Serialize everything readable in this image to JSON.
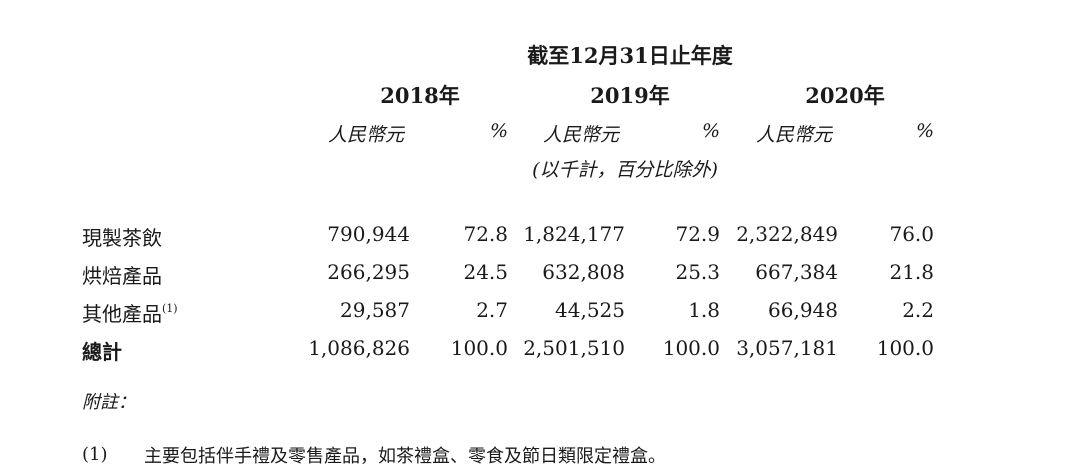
{
  "table": {
    "period_header": "截至12月31日止年度",
    "years": [
      "2018年",
      "2019年",
      "2020年"
    ],
    "currency_label": "人民幣元",
    "percent_label": "%",
    "unit_note": "(以千計，百分比除外)",
    "rows": [
      {
        "label": "現製茶飲",
        "note": "",
        "values": [
          "790,944",
          "72.8",
          "1,824,177",
          "72.9",
          "2,322,849",
          "76.0"
        ]
      },
      {
        "label": "烘焙產品",
        "note": "",
        "values": [
          "266,295",
          "24.5",
          "632,808",
          "25.3",
          "667,384",
          "21.8"
        ]
      },
      {
        "label": "其他產品",
        "note": "(1)",
        "values": [
          "29,587",
          "2.7",
          "44,525",
          "1.8",
          "66,948",
          "2.2"
        ]
      },
      {
        "label": "總計",
        "note": "",
        "values": [
          "1,086,826",
          "100.0",
          "2,501,510",
          "100.0",
          "3,057,181",
          "100.0"
        ]
      }
    ]
  },
  "notes": {
    "heading": "附註：",
    "items": [
      {
        "marker": "(1)",
        "text": "主要包括伴手禮及零售產品，如茶禮盒、零食及節日類限定禮盒。"
      }
    ]
  }
}
